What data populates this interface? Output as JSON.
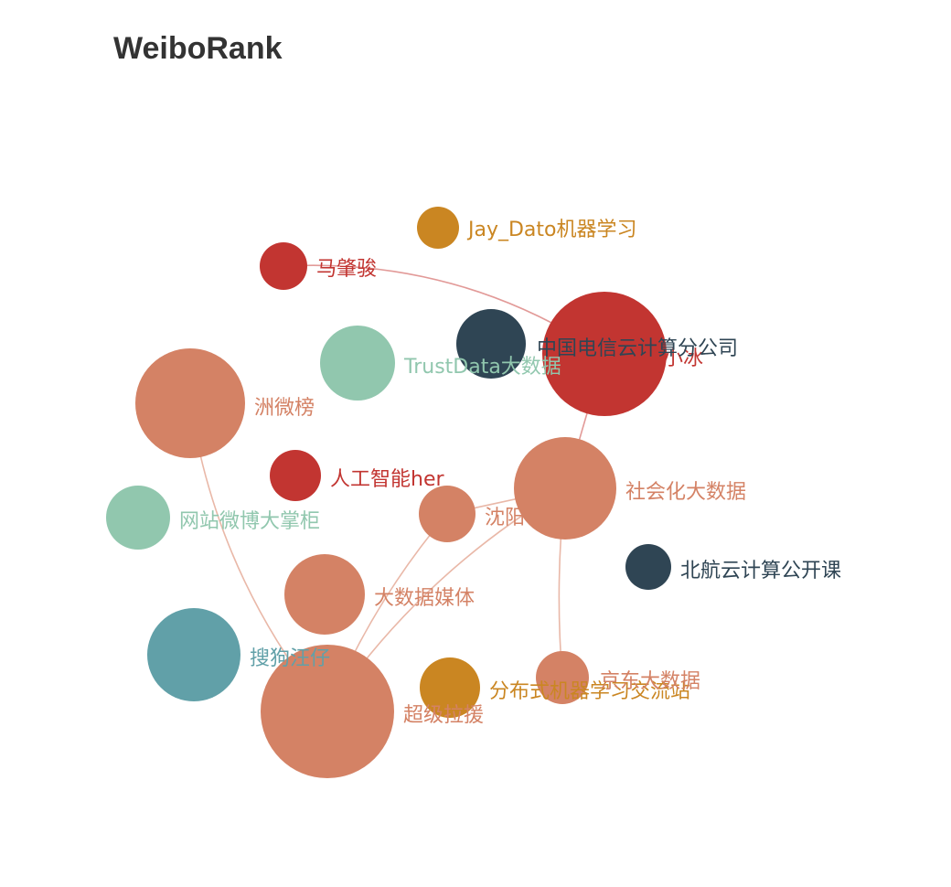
{
  "title": "WeiboRank",
  "colors": {
    "red": "#c23531",
    "navy": "#2f4554",
    "teal": "#61a0a8",
    "salmon": "#d48265",
    "mint": "#91c7ae",
    "gold": "#ca8622",
    "edge": "#e9b8a8"
  },
  "chart_data": {
    "type": "graph",
    "layout": "force",
    "nodes": [
      {
        "name": "Jay_Dato机器学习",
        "color": "gold",
        "size": 2
      },
      {
        "name": "马肇骏",
        "color": "red",
        "size": 2
      },
      {
        "name": "小冰",
        "color": "red",
        "size": 6
      },
      {
        "name": "中国电信云计算分公司",
        "color": "navy",
        "size": 3
      },
      {
        "name": "TrustData大数据",
        "color": "mint",
        "size": 3
      },
      {
        "name": "洲微榜",
        "color": "salmon",
        "size": 5
      },
      {
        "name": "人工智能her",
        "color": "red",
        "size": 2
      },
      {
        "name": "社会化大数据",
        "color": "salmon",
        "size": 5
      },
      {
        "name": "沈阳",
        "color": "salmon",
        "size": 2.5
      },
      {
        "name": "网站微博大掌柜",
        "color": "mint",
        "size": 3
      },
      {
        "name": "北航云计算公开课",
        "color": "navy",
        "size": 2
      },
      {
        "name": "大数据媒体",
        "color": "salmon",
        "size": 3.5
      },
      {
        "name": "搜狗汪仔",
        "color": "teal",
        "size": 4.5
      },
      {
        "name": "超级拉援",
        "color": "salmon",
        "size": 7
      },
      {
        "name": "分布式机器学习交流站",
        "color": "gold",
        "size": 2.8
      },
      {
        "name": "京东大数据",
        "color": "salmon",
        "size": 2.5
      }
    ],
    "edges": [
      {
        "source": "马肇骏",
        "target": "小冰"
      },
      {
        "source": "小冰",
        "target": "社会化大数据"
      },
      {
        "source": "社会化大数据",
        "target": "超级拉援"
      },
      {
        "source": "社会化大数据",
        "target": "京东大数据"
      },
      {
        "source": "洲微榜",
        "target": "超级拉援"
      },
      {
        "source": "沈阳",
        "target": "超级拉援"
      },
      {
        "source": "沈阳",
        "target": "社会化大数据"
      }
    ]
  }
}
